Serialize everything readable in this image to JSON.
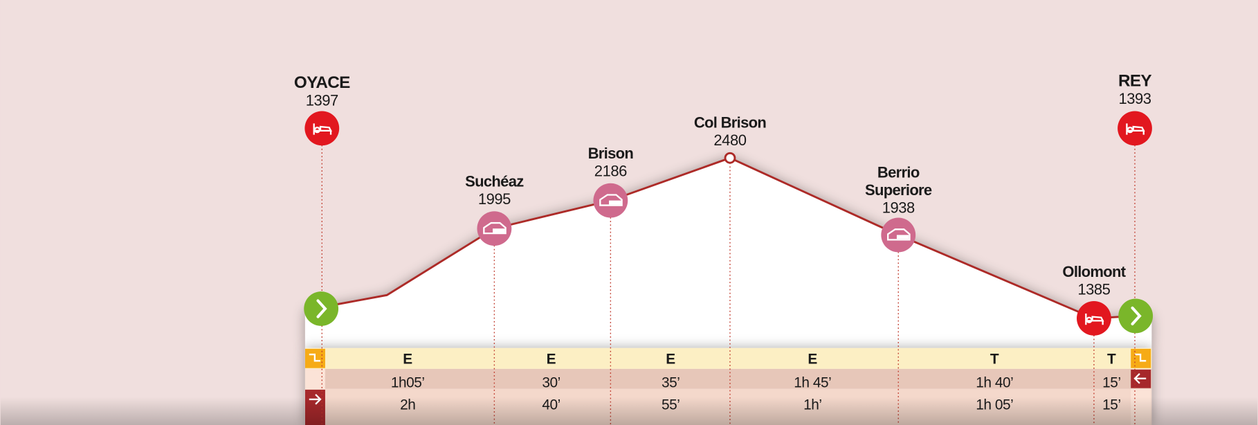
{
  "stops": [
    {
      "name": [
        "OYACE"
      ],
      "elevation": 1397
    },
    {
      "name": [
        "Suchéaz"
      ],
      "elevation": 1995
    },
    {
      "name": [
        "Brison"
      ],
      "elevation": 2186
    },
    {
      "name": [
        "Col Brison"
      ],
      "elevation": 2480
    },
    {
      "name": [
        "Berrio",
        "Superiore"
      ],
      "elevation": 1938
    },
    {
      "name": [
        "Ollomont"
      ],
      "elevation": 1385
    },
    {
      "name": [
        "REY"
      ],
      "elevation": 1393
    }
  ],
  "segments": [
    {
      "difficulty": "E",
      "return": "1h05’",
      "outbound": "2h"
    },
    {
      "difficulty": "E",
      "return": "30’",
      "outbound": "40’"
    },
    {
      "difficulty": "E",
      "return": "35’",
      "outbound": "55’"
    },
    {
      "difficulty": "E",
      "return": "1h 45’",
      "outbound": "1h’"
    },
    {
      "difficulty": "T",
      "return": "1h 40’",
      "outbound": "1h 05’"
    },
    {
      "difficulty": "T",
      "return": "15’",
      "outbound": "15’"
    }
  ]
}
